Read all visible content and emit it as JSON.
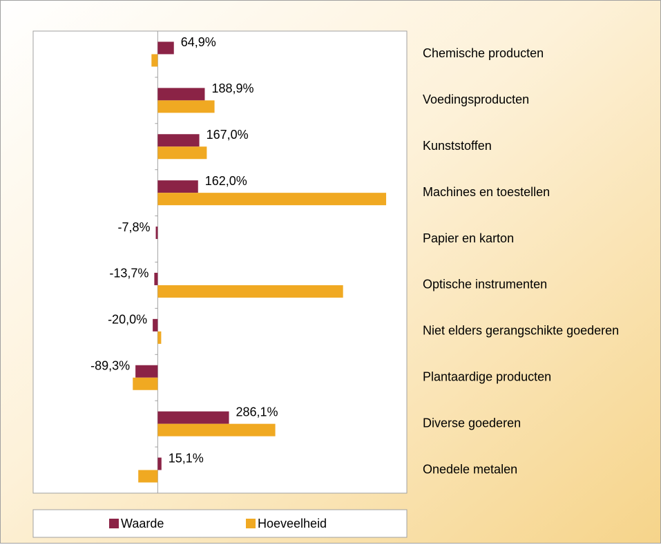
{
  "chart_data": {
    "type": "bar",
    "orientation": "horizontal",
    "categories": [
      "Chemische producten",
      "Voedingsproducten",
      "Kunststoffen",
      "Machines en toestellen",
      "Papier en karton",
      "Optische instrumenten",
      "Niet elders gerangschikte goederen",
      "Plantaardige producten",
      "Diverse goederen",
      "Onedele metalen"
    ],
    "series": [
      {
        "name": "Waarde",
        "color": "#8b2346",
        "values": [
          64.9,
          188.9,
          167.0,
          162.0,
          -7.8,
          -13.7,
          -20.0,
          -89.3,
          286.1,
          15.1
        ],
        "value_labels": [
          "64,9%",
          "188,9%",
          "167,0%",
          "162,0%",
          "-7,8%",
          "-13,7%",
          "-20,0%",
          "-89,3%",
          "286,1%",
          "15,1%"
        ]
      },
      {
        "name": "Hoeveelheid",
        "color": "#f0a922",
        "values": [
          -25,
          228,
          197,
          917,
          0,
          744,
          14,
          -100,
          472,
          -78
        ]
      }
    ],
    "xlim": [
      -500,
      1000
    ],
    "legend": "bottom"
  }
}
